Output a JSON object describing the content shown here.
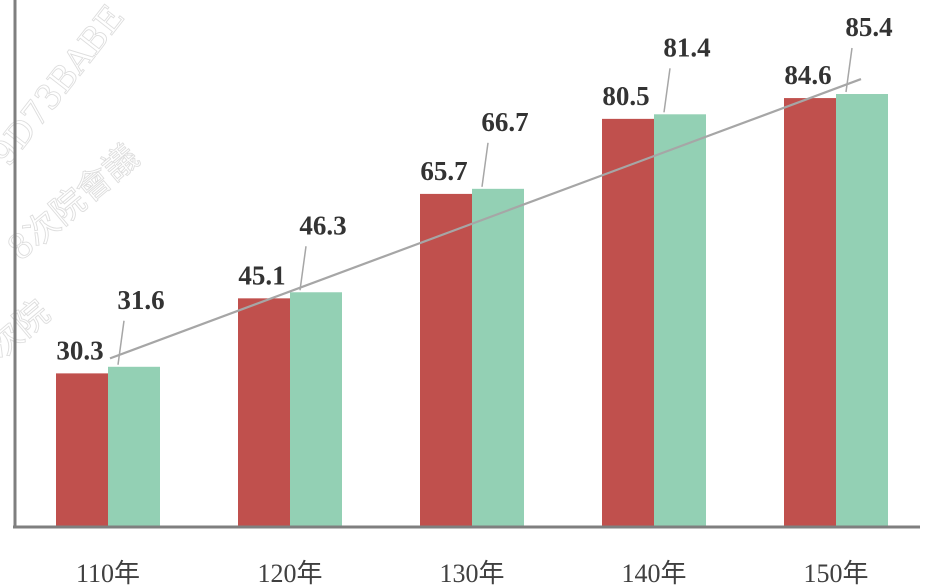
{
  "chart_data": {
    "type": "bar",
    "categories": [
      "110年",
      "120年",
      "130年",
      "140年",
      "150年"
    ],
    "series": [
      {
        "color": "#c0504d",
        "values": [
          30.3,
          45.1,
          65.7,
          80.5,
          84.6
        ]
      },
      {
        "color": "#93d0b4",
        "values": [
          31.6,
          46.3,
          66.7,
          81.4,
          85.4
        ]
      }
    ],
    "trendline": {
      "color": "#a6a6a6",
      "from_category": "110年",
      "to_category": "150年"
    },
    "ylim": [
      0,
      100
    ],
    "grid": false,
    "watermark": "9D73BABE 8次院 會議"
  }
}
